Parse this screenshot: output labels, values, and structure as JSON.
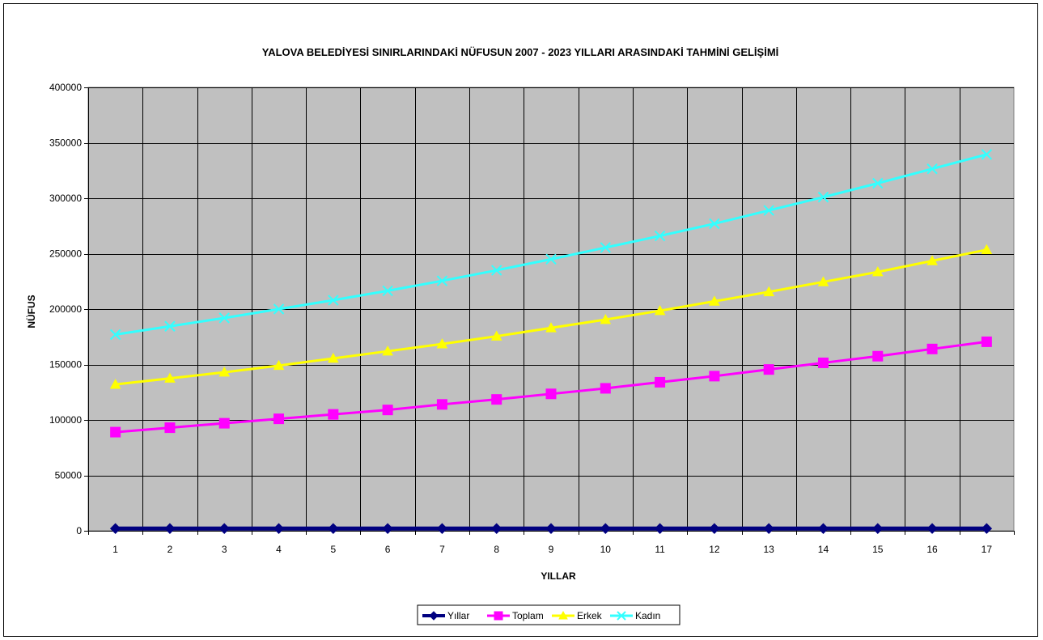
{
  "chart_data": {
    "type": "line",
    "title": "YALOVA BELEDİYESİ SINIRLARINDAKİ NÜFUSUN 2007 - 2023 YILLARI ARASINDAKİ TAHMİNİ GELİŞİMİ",
    "xlabel": "YILLAR",
    "ylabel": "NÜFUS",
    "x": [
      1,
      2,
      3,
      4,
      5,
      6,
      7,
      8,
      9,
      10,
      11,
      12,
      13,
      14,
      15,
      16,
      17
    ],
    "ylim": [
      0,
      400000
    ],
    "yticks": [
      0,
      50000,
      100000,
      150000,
      200000,
      250000,
      300000,
      350000,
      400000
    ],
    "grid": true,
    "legend_position": "bottom",
    "plot_background": "#c0c0c0",
    "series": [
      {
        "name": "Yıllar",
        "color": "#000080",
        "marker": "diamond",
        "values": [
          2007,
          2008,
          2009,
          2010,
          2011,
          2012,
          2013,
          2014,
          2015,
          2016,
          2017,
          2018,
          2019,
          2020,
          2021,
          2022,
          2023
        ]
      },
      {
        "name": "Toplam",
        "color": "#ff00ff",
        "marker": "square",
        "values": [
          89000,
          93000,
          97000,
          101000,
          105000,
          109000,
          114000,
          118500,
          123500,
          128500,
          134000,
          139500,
          145500,
          151500,
          157500,
          164000,
          170500
        ]
      },
      {
        "name": "Erkek",
        "color": "#ffff00",
        "marker": "triangle",
        "values": [
          132000,
          137500,
          143000,
          149000,
          155500,
          162000,
          168500,
          175500,
          183000,
          190500,
          198500,
          207000,
          215500,
          224500,
          233500,
          243500,
          253500
        ]
      },
      {
        "name": "Kadın",
        "color": "#33ffff",
        "marker": "x",
        "values": [
          177000,
          184500,
          192000,
          200000,
          208000,
          216500,
          225500,
          235000,
          245000,
          255500,
          266000,
          277000,
          289000,
          301000,
          313500,
          326500,
          339500
        ]
      }
    ]
  }
}
